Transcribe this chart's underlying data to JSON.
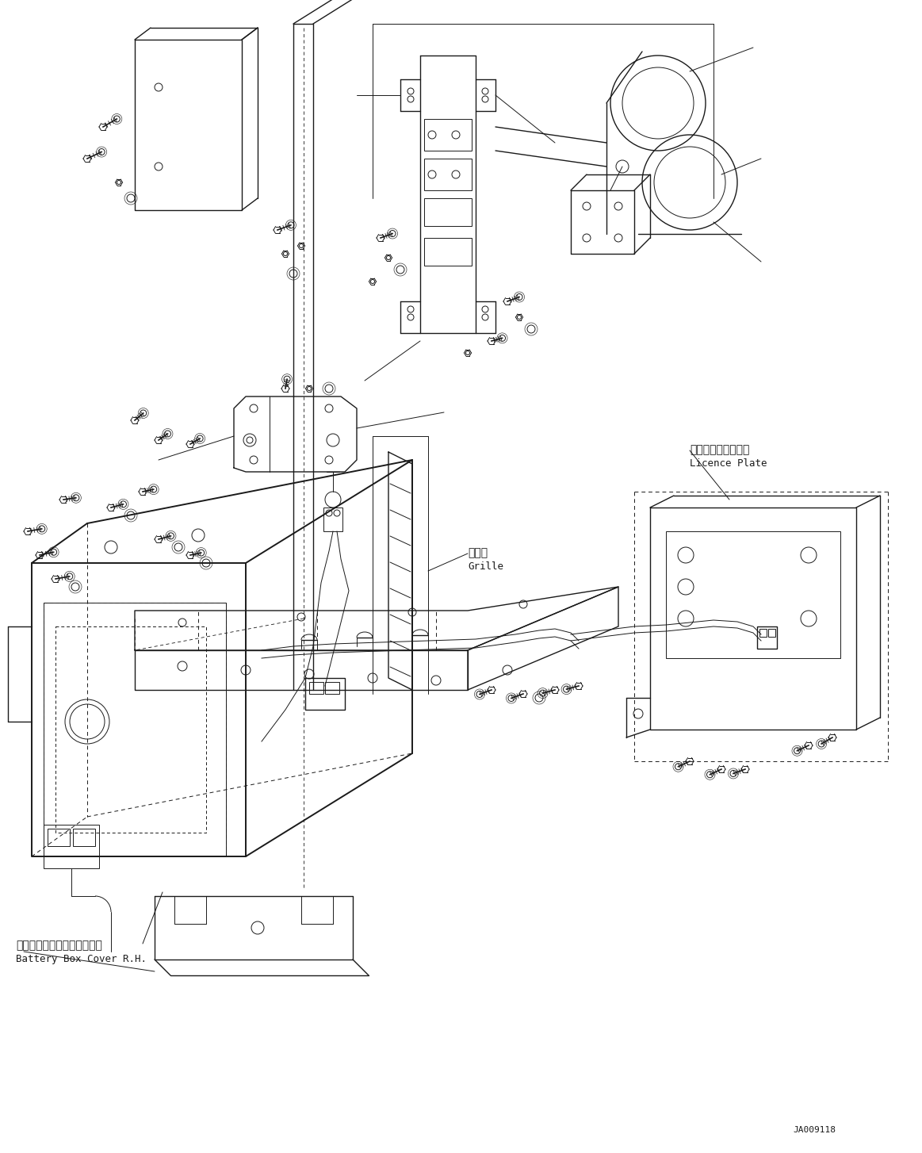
{
  "bg_color": "#ffffff",
  "line_color": "#1a1a1a",
  "fig_width": 11.63,
  "fig_height": 14.54,
  "dpi": 100,
  "part_id": "JA009118",
  "labels": {
    "grille_jp": "グリル",
    "grille_en": "Grille",
    "licence_jp": "ライセンスプレート",
    "licence_en": "Licence Plate",
    "battery_jp": "バッテリボックスカバー　右",
    "battery_en": "Battery Box Cover R.H."
  }
}
